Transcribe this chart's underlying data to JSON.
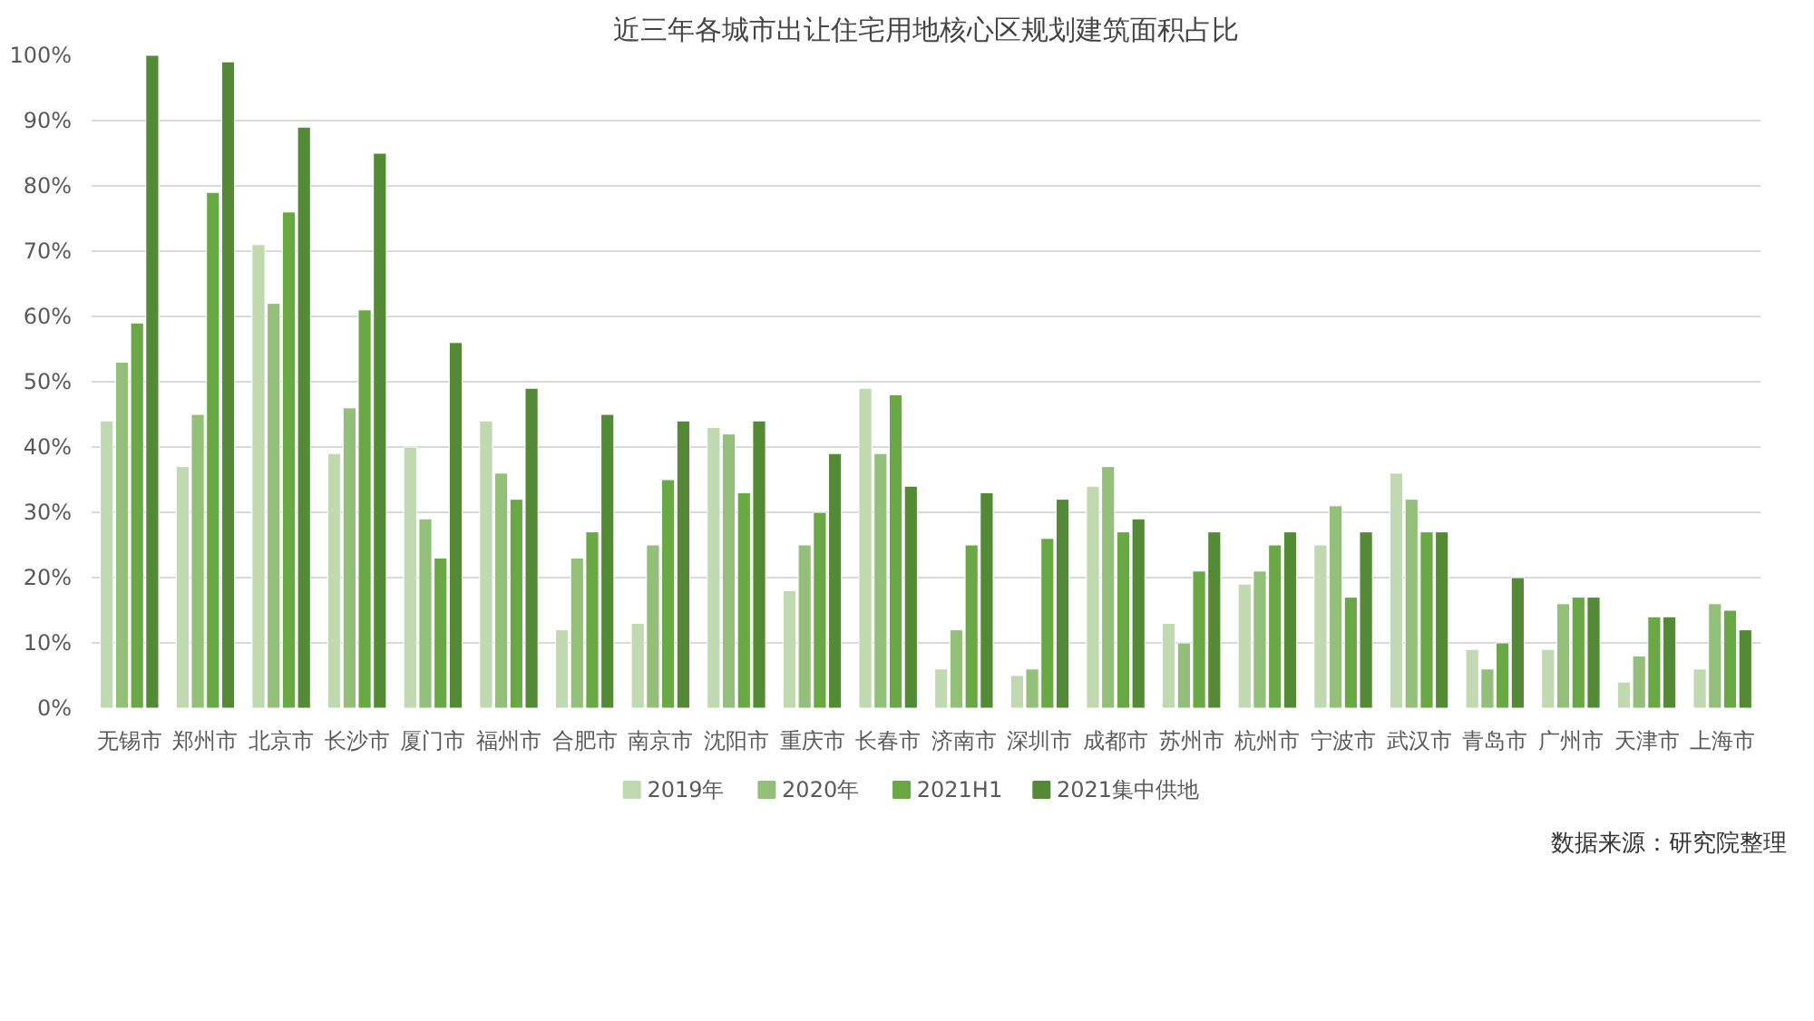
{
  "chart_data": {
    "type": "bar",
    "title": "近三年各城市出让住宅用地核心区规划建筑面积占比",
    "categories": [
      "无锡市",
      "郑州市",
      "北京市",
      "长沙市",
      "厦门市",
      "福州市",
      "合肥市",
      "南京市",
      "沈阳市",
      "重庆市",
      "长春市",
      "济南市",
      "深圳市",
      "成都市",
      "苏州市",
      "杭州市",
      "宁波市",
      "武汉市",
      "青岛市",
      "广州市",
      "天津市",
      "上海市"
    ],
    "series": [
      {
        "name": "2019年",
        "color": "#c0d9b0",
        "values": [
          44,
          37,
          71,
          39,
          40,
          44,
          12,
          13,
          43,
          18,
          49,
          6,
          5,
          34,
          13,
          19,
          25,
          36,
          9,
          9,
          4,
          6
        ]
      },
      {
        "name": "2020年",
        "color": "#93bf7a",
        "values": [
          53,
          45,
          62,
          46,
          29,
          36,
          23,
          25,
          42,
          25,
          39,
          12,
          6,
          37,
          10,
          21,
          31,
          32,
          6,
          16,
          8,
          16
        ]
      },
      {
        "name": "2021H1",
        "color": "#6aa846",
        "values": [
          59,
          79,
          76,
          61,
          23,
          32,
          27,
          35,
          33,
          30,
          48,
          25,
          26,
          27,
          21,
          25,
          17,
          27,
          10,
          17,
          14,
          15
        ]
      },
      {
        "name": "2021集中供地",
        "color": "#548a35",
        "values": [
          100,
          99,
          89,
          85,
          56,
          49,
          45,
          44,
          44,
          39,
          34,
          33,
          32,
          29,
          27,
          27,
          27,
          27,
          20,
          17,
          14,
          12
        ]
      }
    ],
    "ylim": [
      0,
      100
    ],
    "yticks": [
      {
        "value": 0,
        "label": "0%"
      },
      {
        "value": 10,
        "label": "10%"
      },
      {
        "value": 20,
        "label": "20%"
      },
      {
        "value": 30,
        "label": "30%"
      },
      {
        "value": 40,
        "label": "40%"
      },
      {
        "value": 50,
        "label": "50%"
      },
      {
        "value": 60,
        "label": "60%"
      },
      {
        "value": 70,
        "label": "70%"
      },
      {
        "value": 80,
        "label": "80%"
      },
      {
        "value": 90,
        "label": "90%"
      },
      {
        "value": 100,
        "label": "100%"
      }
    ],
    "grid": "y",
    "legend": "bottom",
    "annotations": [
      "数据来源：研究院整理"
    ]
  }
}
